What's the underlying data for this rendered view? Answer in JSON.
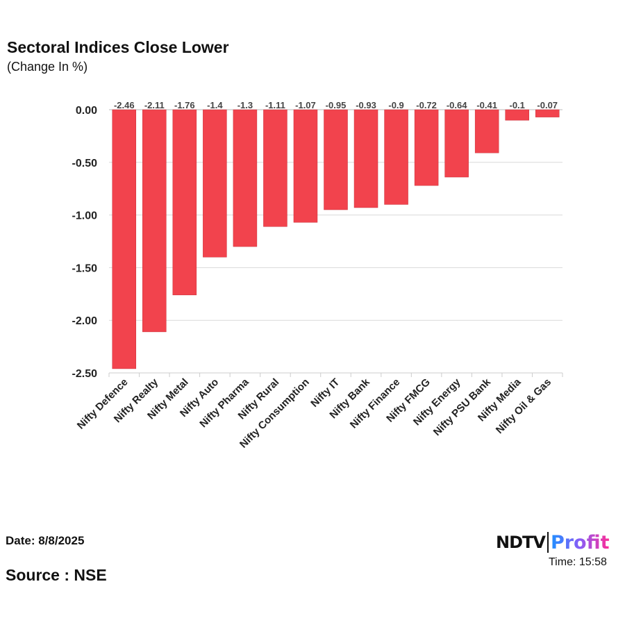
{
  "chart_data": {
    "type": "bar",
    "title": "Sectoral Indices Close Lower",
    "subtitle": "(Change In %)",
    "categories": [
      "Nifty Defence",
      "Nifty Realty",
      "Nifty Metal",
      "Nifty Auto",
      "Nifty Pharma",
      "Nifty Rural",
      "Nifty Consumption",
      "Nifty IT",
      "Nifty Bank",
      "Nifty Finance",
      "Nifty FMCG",
      "Nifty Energy",
      "Nifty PSU Bank",
      "Nifty Media",
      "Nifty Oil & Gas"
    ],
    "values": [
      -2.46,
      -2.11,
      -1.76,
      -1.4,
      -1.3,
      -1.11,
      -1.07,
      -0.95,
      -0.93,
      -0.9,
      -0.72,
      -0.64,
      -0.41,
      -0.1,
      -0.07
    ],
    "ylim": [
      -2.5,
      0
    ],
    "yticks": [
      "0.00",
      "-0.50",
      "-1.00",
      "-1.50",
      "-2.00",
      "-2.50"
    ],
    "grid": true,
    "bar_color": "#f2434d"
  },
  "footer": {
    "date": "Date: 8/8/2025",
    "time": "Time: 15:58",
    "source": "Source : NSE",
    "logo_ndtv": "NDTV",
    "logo_profit": "Profit"
  }
}
